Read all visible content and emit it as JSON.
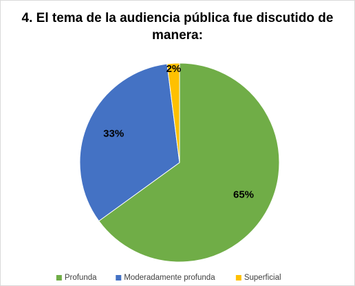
{
  "chart_data": {
    "type": "pie",
    "title": "4. El tema de la audiencia pública fue discutido de manera:",
    "categories": [
      "Profunda",
      "Moderadamente profunda",
      "Superficial"
    ],
    "values": [
      65,
      33,
      2
    ],
    "value_labels": [
      "65%",
      "33%",
      "2%"
    ],
    "colors": [
      "#70ad47",
      "#4472c4",
      "#ffc000"
    ],
    "legend": "bottom"
  }
}
